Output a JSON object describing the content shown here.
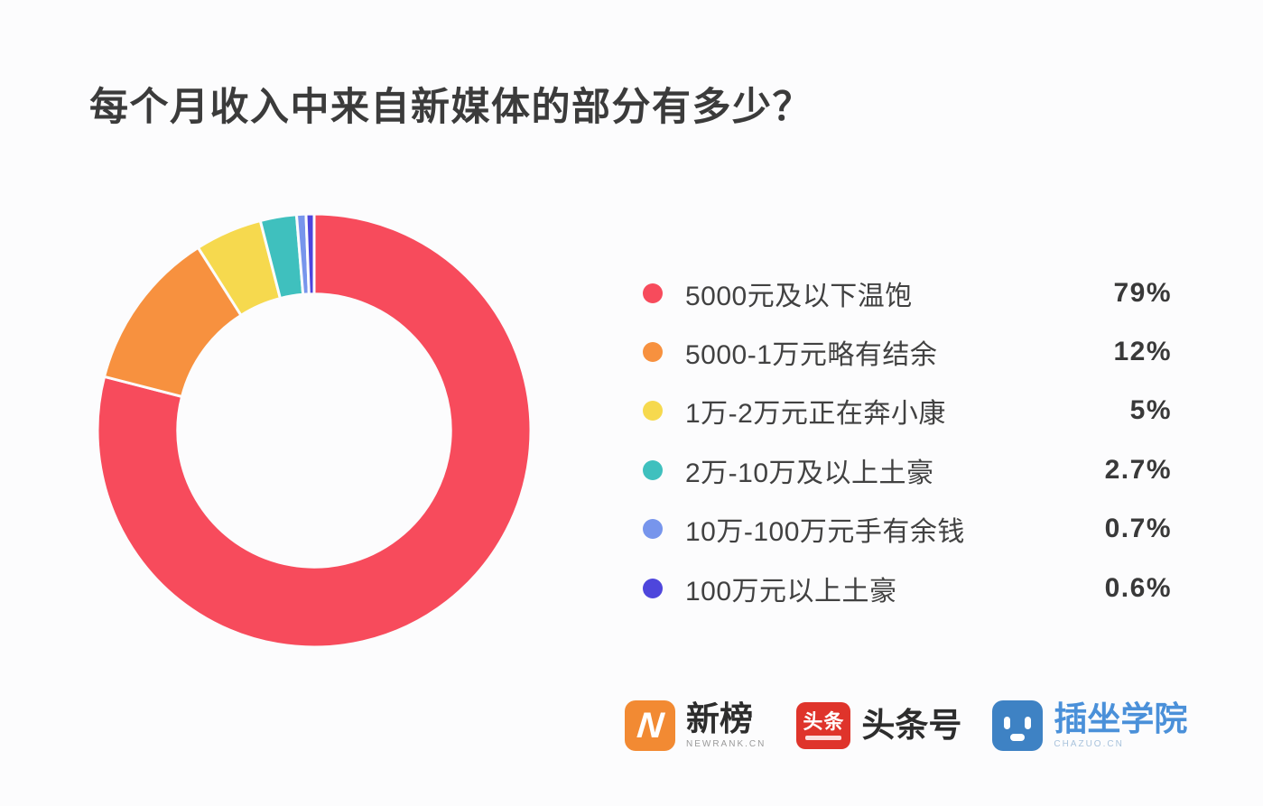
{
  "title": "每个月收入中来自新媒体的部分有多少？",
  "chart_data": {
    "type": "pie",
    "subtype": "donut",
    "title": "每个月收入中来自新媒体的部分有多少？",
    "start_angle_deg": 0,
    "direction": "clockwise",
    "legend_position": "right",
    "inner_radius_ratio": 0.63,
    "slices": [
      {
        "label": "5000元及以下温饱",
        "value": 79,
        "pct_label": "79%",
        "color": "#F74B5C"
      },
      {
        "label": "5000-1万元略有结余",
        "value": 12,
        "pct_label": "12%",
        "color": "#F7913F"
      },
      {
        "label": "1万-2万元正在奔小康",
        "value": 5,
        "pct_label": "5%",
        "color": "#F6D94E"
      },
      {
        "label": "2万-10万及以上土豪",
        "value": 2.7,
        "pct_label": "2.7%",
        "color": "#3FC0BE"
      },
      {
        "label": "10万-100万元手有余钱",
        "value": 0.7,
        "pct_label": "0.7%",
        "color": "#7795EC"
      },
      {
        "label": "100万元以上土豪",
        "value": 0.6,
        "pct_label": "0.6%",
        "color": "#4E46DC"
      }
    ]
  },
  "footer": {
    "logos": [
      {
        "id": "newrank",
        "icon_letter": "N",
        "title": "新榜",
        "subtitle": "NEWRANK.CN"
      },
      {
        "id": "toutiao",
        "icon_text": "头条",
        "title": "头条号",
        "subtitle": ""
      },
      {
        "id": "chazuo",
        "icon_text": "",
        "title": "插坐学院",
        "subtitle": "CHAZUO.CN"
      }
    ]
  },
  "colors": {
    "background": "#FCFCFD",
    "title_text": "#3B3B3B",
    "legend_text": "#414141",
    "newrank_orange": "#F28A33",
    "toutiao_red": "#DF342B",
    "chazuo_blue": "#3E82C4",
    "chazuo_text": "#4A90D9"
  }
}
